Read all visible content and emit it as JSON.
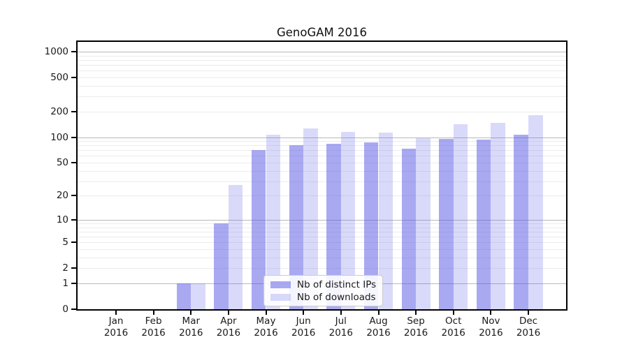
{
  "chart_data": {
    "type": "bar",
    "title": "GenoGAM 2016",
    "categories": [
      "Jan",
      "Feb",
      "Mar",
      "Apr",
      "May",
      "Jun",
      "Jul",
      "Aug",
      "Sep",
      "Oct",
      "Nov",
      "Dec"
    ],
    "year": "2016",
    "series": [
      {
        "key": "ips",
        "name": "Nb of distinct IPs",
        "color": "rgba(84,84,229,0.5)",
        "values": [
          0,
          0,
          1,
          9,
          70,
          80,
          83,
          87,
          73,
          96,
          94,
          107
        ]
      },
      {
        "key": "downloads",
        "name": "Nb of downloads",
        "color": "rgba(103,107,231,0.25)",
        "values": [
          0,
          0,
          1,
          27,
          107,
          127,
          115,
          114,
          97,
          141,
          146,
          181
        ]
      }
    ],
    "yscale": "log1p",
    "ylim": [
      0,
      1300
    ],
    "yticks": [
      0,
      1,
      2,
      5,
      10,
      20,
      50,
      100,
      200,
      500,
      1000
    ],
    "grid": true,
    "legend_position": "lower-center",
    "colors": {
      "major_grid": "#b9b9b9",
      "minor_grid": "#ececec",
      "spine": "#000000",
      "text": "#1a1a1a"
    }
  }
}
